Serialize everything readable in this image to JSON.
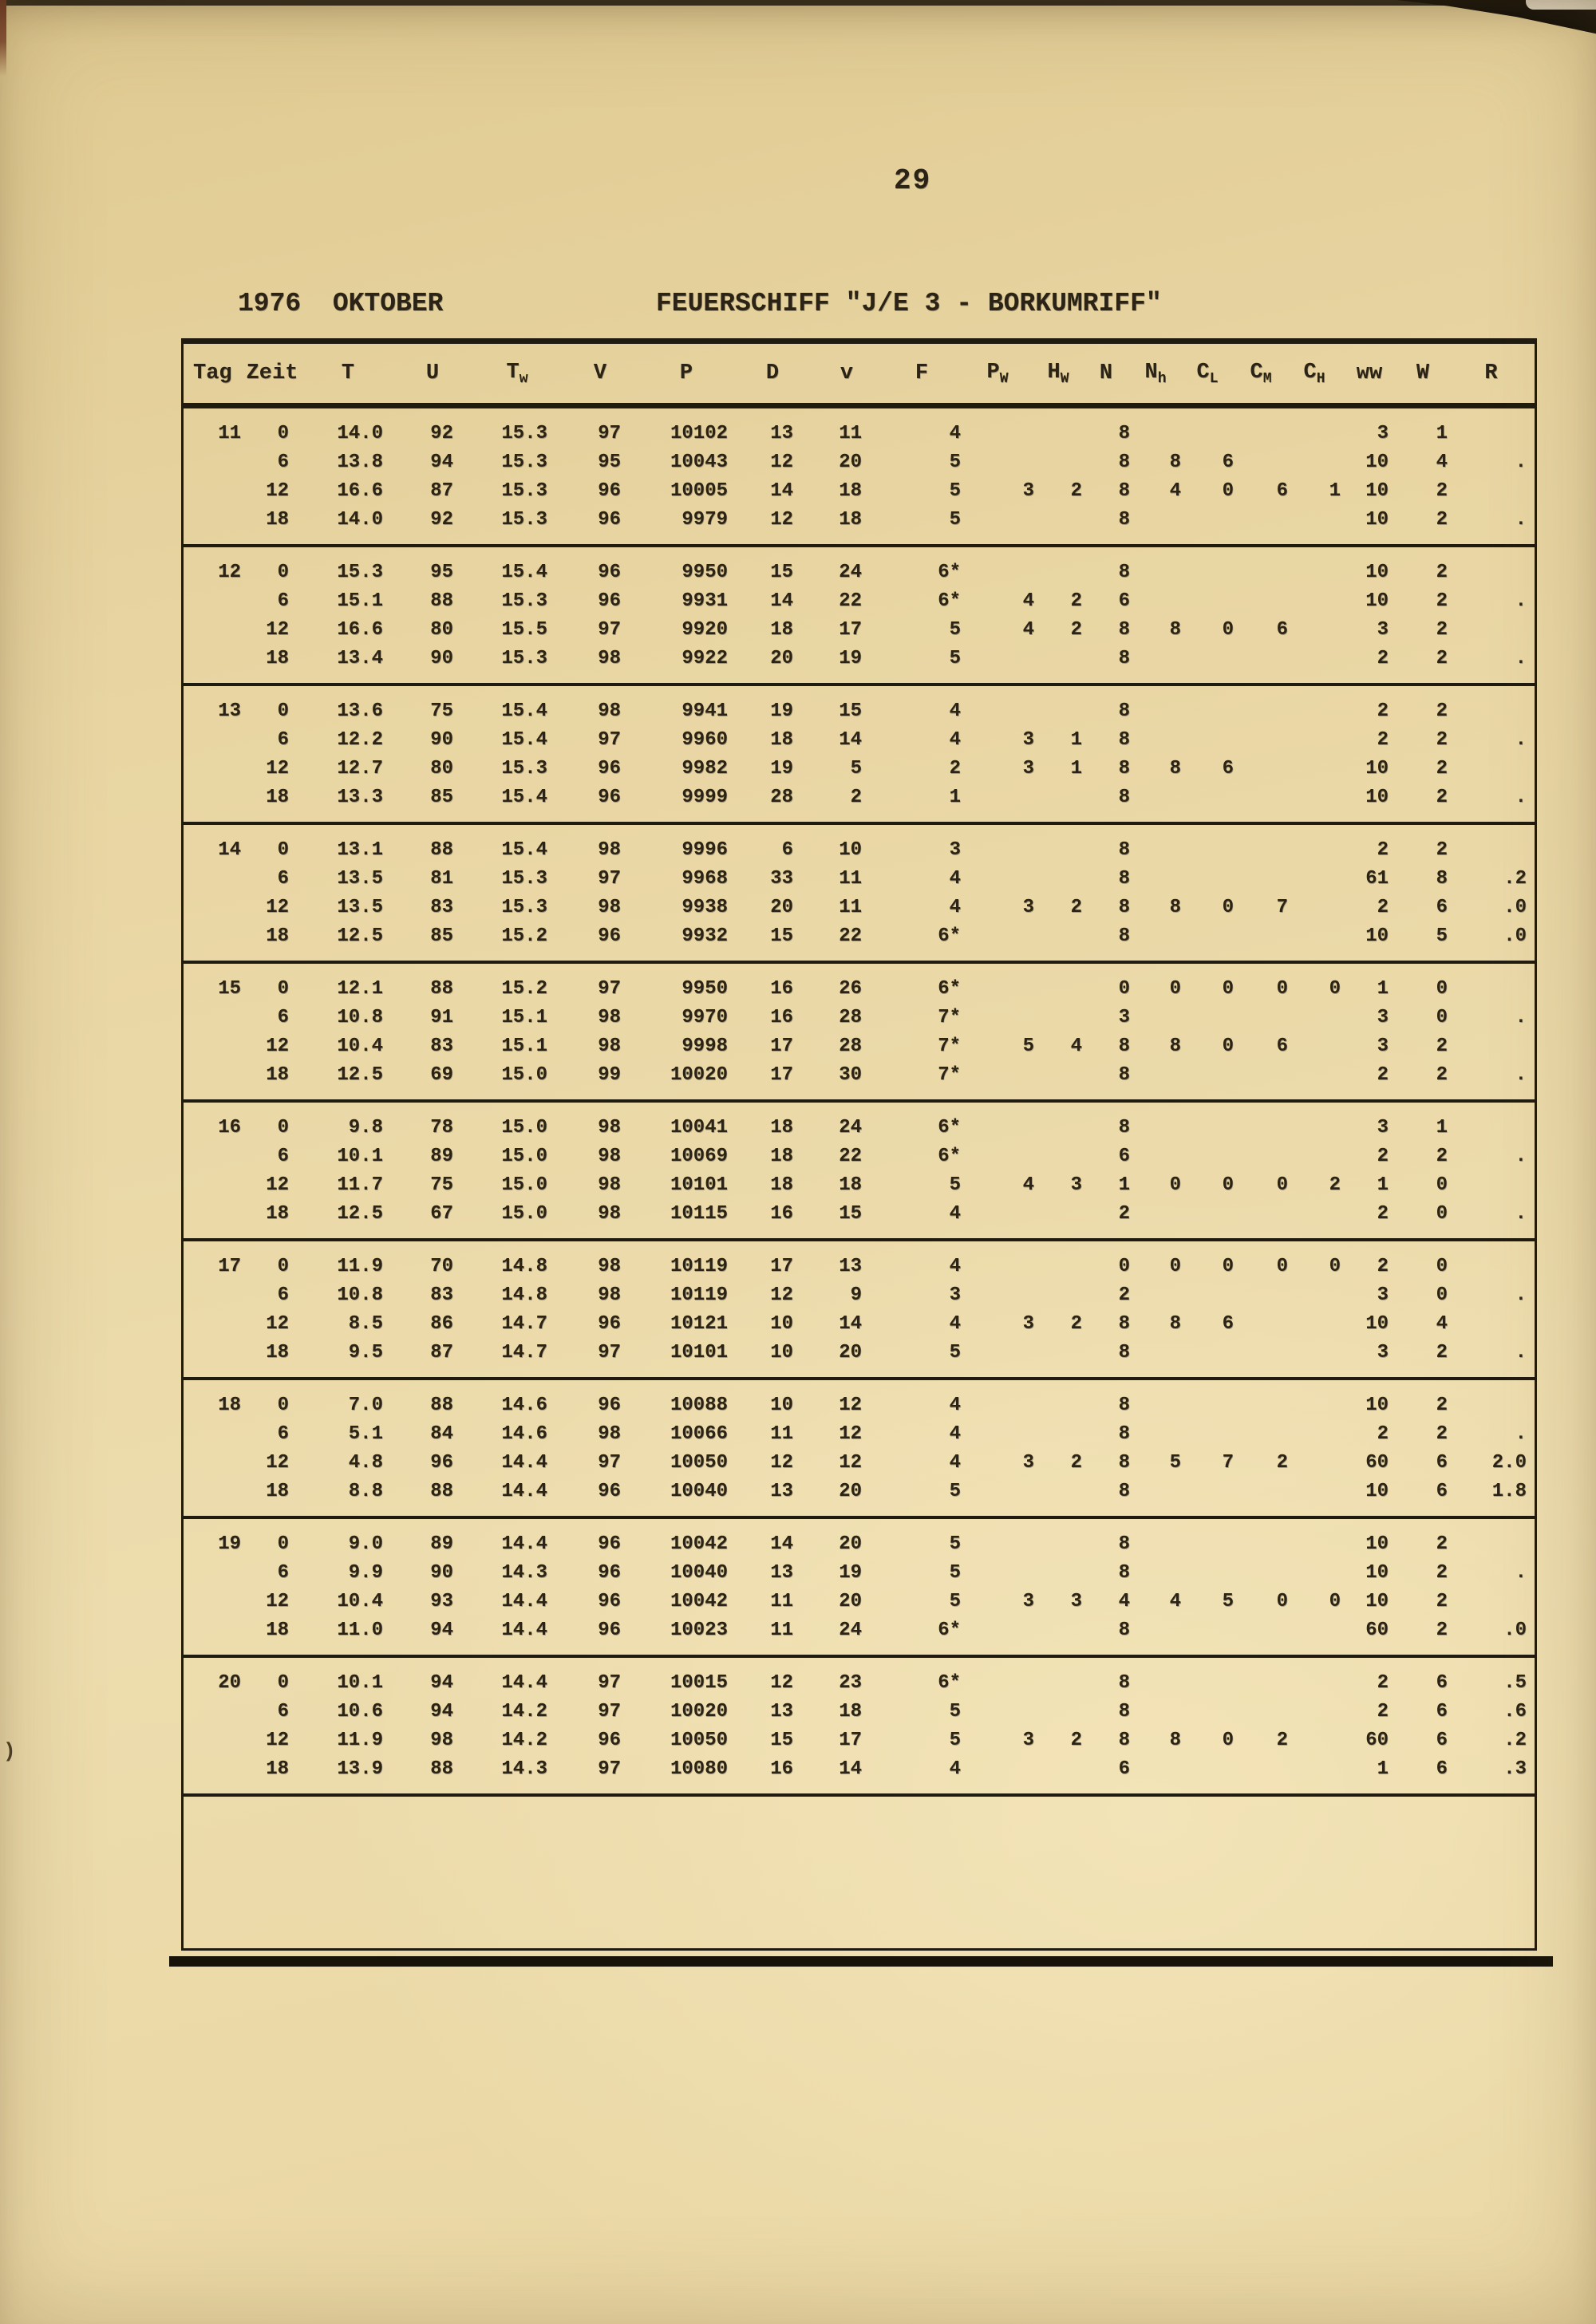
{
  "page": {
    "number": "29",
    "title_left": "1976  OKTOBER",
    "title_right": "FEUERSCHIFF \"J/E 3 - BORKUMRIFF\"",
    "scan_artifact": ")"
  },
  "colors": {
    "paper": "#e9d6a2",
    "ink": "#2b2416",
    "rule": "#201b10"
  },
  "table": {
    "columns": [
      {
        "key": "tag",
        "label": "Tag"
      },
      {
        "key": "zeit",
        "label": "Zeit"
      },
      {
        "key": "t",
        "label": "T"
      },
      {
        "key": "u",
        "label": "U"
      },
      {
        "key": "tw",
        "label": "T",
        "sub": "w"
      },
      {
        "key": "v-vis",
        "label": "V"
      },
      {
        "key": "p",
        "label": "P"
      },
      {
        "key": "d",
        "label": "D"
      },
      {
        "key": "v-wind",
        "label": "v"
      },
      {
        "key": "f",
        "label": "F"
      },
      {
        "key": "pw",
        "label": "P",
        "sub": "W"
      },
      {
        "key": "hw",
        "label": "H",
        "sub": "W"
      },
      {
        "key": "n",
        "label": "N"
      },
      {
        "key": "nh",
        "label": "N",
        "sub": "h"
      },
      {
        "key": "cl",
        "label": "C",
        "sub": "L"
      },
      {
        "key": "cm",
        "label": "C",
        "sub": "M"
      },
      {
        "key": "ch",
        "label": "C",
        "sub": "H"
      },
      {
        "key": "ww",
        "label": "ww"
      },
      {
        "key": "w",
        "label": "W"
      },
      {
        "key": "r",
        "label": "R"
      }
    ],
    "days": [
      {
        "tag": "11",
        "rows": [
          [
            "0",
            "14.0",
            "92",
            "15.3",
            "97",
            "10102",
            "13",
            "11",
            "4",
            "",
            "",
            "8",
            "",
            "",
            "",
            "",
            "3",
            "1",
            ""
          ],
          [
            "6",
            "13.8",
            "94",
            "15.3",
            "95",
            "10043",
            "12",
            "20",
            "5",
            "",
            "",
            "8",
            "8",
            "6",
            "",
            "",
            "10",
            "4",
            "."
          ],
          [
            "12",
            "16.6",
            "87",
            "15.3",
            "96",
            "10005",
            "14",
            "18",
            "5",
            "3",
            "2",
            "8",
            "4",
            "0",
            "6",
            "1",
            "10",
            "2",
            ""
          ],
          [
            "18",
            "14.0",
            "92",
            "15.3",
            "96",
            "9979",
            "12",
            "18",
            "5",
            "",
            "",
            "8",
            "",
            "",
            "",
            "",
            "10",
            "2",
            "."
          ]
        ]
      },
      {
        "tag": "12",
        "rows": [
          [
            "0",
            "15.3",
            "95",
            "15.4",
            "96",
            "9950",
            "15",
            "24",
            "6*",
            "",
            "",
            "8",
            "",
            "",
            "",
            "",
            "10",
            "2",
            ""
          ],
          [
            "6",
            "15.1",
            "88",
            "15.3",
            "96",
            "9931",
            "14",
            "22",
            "6*",
            "4",
            "2",
            "6",
            "",
            "",
            "",
            "",
            "10",
            "2",
            "."
          ],
          [
            "12",
            "16.6",
            "80",
            "15.5",
            "97",
            "9920",
            "18",
            "17",
            "5",
            "4",
            "2",
            "8",
            "8",
            "0",
            "6",
            "",
            "3",
            "2",
            ""
          ],
          [
            "18",
            "13.4",
            "90",
            "15.3",
            "98",
            "9922",
            "20",
            "19",
            "5",
            "",
            "",
            "8",
            "",
            "",
            "",
            "",
            "2",
            "2",
            "."
          ]
        ]
      },
      {
        "tag": "13",
        "rows": [
          [
            "0",
            "13.6",
            "75",
            "15.4",
            "98",
            "9941",
            "19",
            "15",
            "4",
            "",
            "",
            "8",
            "",
            "",
            "",
            "",
            "2",
            "2",
            ""
          ],
          [
            "6",
            "12.2",
            "90",
            "15.4",
            "97",
            "9960",
            "18",
            "14",
            "4",
            "3",
            "1",
            "8",
            "",
            "",
            "",
            "",
            "2",
            "2",
            "."
          ],
          [
            "12",
            "12.7",
            "80",
            "15.3",
            "96",
            "9982",
            "19",
            "5",
            "2",
            "3",
            "1",
            "8",
            "8",
            "6",
            "",
            "",
            "10",
            "2",
            ""
          ],
          [
            "18",
            "13.3",
            "85",
            "15.4",
            "96",
            "9999",
            "28",
            "2",
            "1",
            "",
            "",
            "8",
            "",
            "",
            "",
            "",
            "10",
            "2",
            "."
          ]
        ]
      },
      {
        "tag": "14",
        "rows": [
          [
            "0",
            "13.1",
            "88",
            "15.4",
            "98",
            "9996",
            "6",
            "10",
            "3",
            "",
            "",
            "8",
            "",
            "",
            "",
            "",
            "2",
            "2",
            ""
          ],
          [
            "6",
            "13.5",
            "81",
            "15.3",
            "97",
            "9968",
            "33",
            "11",
            "4",
            "",
            "",
            "8",
            "",
            "",
            "",
            "",
            "61",
            "8",
            ".2"
          ],
          [
            "12",
            "13.5",
            "83",
            "15.3",
            "98",
            "9938",
            "20",
            "11",
            "4",
            "3",
            "2",
            "8",
            "8",
            "0",
            "7",
            "",
            "2",
            "6",
            ".0"
          ],
          [
            "18",
            "12.5",
            "85",
            "15.2",
            "96",
            "9932",
            "15",
            "22",
            "6*",
            "",
            "",
            "8",
            "",
            "",
            "",
            "",
            "10",
            "5",
            ".0"
          ]
        ]
      },
      {
        "tag": "15",
        "rows": [
          [
            "0",
            "12.1",
            "88",
            "15.2",
            "97",
            "9950",
            "16",
            "26",
            "6*",
            "",
            "",
            "0",
            "0",
            "0",
            "0",
            "0",
            "1",
            "0",
            ""
          ],
          [
            "6",
            "10.8",
            "91",
            "15.1",
            "98",
            "9970",
            "16",
            "28",
            "7*",
            "",
            "",
            "3",
            "",
            "",
            "",
            "",
            "3",
            "0",
            "."
          ],
          [
            "12",
            "10.4",
            "83",
            "15.1",
            "98",
            "9998",
            "17",
            "28",
            "7*",
            "5",
            "4",
            "8",
            "8",
            "0",
            "6",
            "",
            "3",
            "2",
            ""
          ],
          [
            "18",
            "12.5",
            "69",
            "15.0",
            "99",
            "10020",
            "17",
            "30",
            "7*",
            "",
            "",
            "8",
            "",
            "",
            "",
            "",
            "2",
            "2",
            "."
          ]
        ]
      },
      {
        "tag": "16",
        "rows": [
          [
            "0",
            "9.8",
            "78",
            "15.0",
            "98",
            "10041",
            "18",
            "24",
            "6*",
            "",
            "",
            "8",
            "",
            "",
            "",
            "",
            "3",
            "1",
            ""
          ],
          [
            "6",
            "10.1",
            "89",
            "15.0",
            "98",
            "10069",
            "18",
            "22",
            "6*",
            "",
            "",
            "6",
            "",
            "",
            "",
            "",
            "2",
            "2",
            "."
          ],
          [
            "12",
            "11.7",
            "75",
            "15.0",
            "98",
            "10101",
            "18",
            "18",
            "5",
            "4",
            "3",
            "1",
            "0",
            "0",
            "0",
            "2",
            "1",
            "0",
            ""
          ],
          [
            "18",
            "12.5",
            "67",
            "15.0",
            "98",
            "10115",
            "16",
            "15",
            "4",
            "",
            "",
            "2",
            "",
            "",
            "",
            "",
            "2",
            "0",
            "."
          ]
        ]
      },
      {
        "tag": "17",
        "rows": [
          [
            "0",
            "11.9",
            "70",
            "14.8",
            "98",
            "10119",
            "17",
            "13",
            "4",
            "",
            "",
            "0",
            "0",
            "0",
            "0",
            "0",
            "2",
            "0",
            ""
          ],
          [
            "6",
            "10.8",
            "83",
            "14.8",
            "98",
            "10119",
            "12",
            "9",
            "3",
            "",
            "",
            "2",
            "",
            "",
            "",
            "",
            "3",
            "0",
            "."
          ],
          [
            "12",
            "8.5",
            "86",
            "14.7",
            "96",
            "10121",
            "10",
            "14",
            "4",
            "3",
            "2",
            "8",
            "8",
            "6",
            "",
            "",
            "10",
            "4",
            ""
          ],
          [
            "18",
            "9.5",
            "87",
            "14.7",
            "97",
            "10101",
            "10",
            "20",
            "5",
            "",
            "",
            "8",
            "",
            "",
            "",
            "",
            "3",
            "2",
            "."
          ]
        ]
      },
      {
        "tag": "18",
        "rows": [
          [
            "0",
            "7.0",
            "88",
            "14.6",
            "96",
            "10088",
            "10",
            "12",
            "4",
            "",
            "",
            "8",
            "",
            "",
            "",
            "",
            "10",
            "2",
            ""
          ],
          [
            "6",
            "5.1",
            "84",
            "14.6",
            "98",
            "10066",
            "11",
            "12",
            "4",
            "",
            "",
            "8",
            "",
            "",
            "",
            "",
            "2",
            "2",
            "."
          ],
          [
            "12",
            "4.8",
            "96",
            "14.4",
            "97",
            "10050",
            "12",
            "12",
            "4",
            "3",
            "2",
            "8",
            "5",
            "7",
            "2",
            "",
            "60",
            "6",
            "2.0"
          ],
          [
            "18",
            "8.8",
            "88",
            "14.4",
            "96",
            "10040",
            "13",
            "20",
            "5",
            "",
            "",
            "8",
            "",
            "",
            "",
            "",
            "10",
            "6",
            "1.8"
          ]
        ]
      },
      {
        "tag": "19",
        "rows": [
          [
            "0",
            "9.0",
            "89",
            "14.4",
            "96",
            "10042",
            "14",
            "20",
            "5",
            "",
            "",
            "8",
            "",
            "",
            "",
            "",
            "10",
            "2",
            ""
          ],
          [
            "6",
            "9.9",
            "90",
            "14.3",
            "96",
            "10040",
            "13",
            "19",
            "5",
            "",
            "",
            "8",
            "",
            "",
            "",
            "",
            "10",
            "2",
            "."
          ],
          [
            "12",
            "10.4",
            "93",
            "14.4",
            "96",
            "10042",
            "11",
            "20",
            "5",
            "3",
            "3",
            "4",
            "4",
            "5",
            "0",
            "0",
            "10",
            "2",
            ""
          ],
          [
            "18",
            "11.0",
            "94",
            "14.4",
            "96",
            "10023",
            "11",
            "24",
            "6*",
            "",
            "",
            "8",
            "",
            "",
            "",
            "",
            "60",
            "2",
            ".0"
          ]
        ]
      },
      {
        "tag": "20",
        "rows": [
          [
            "0",
            "10.1",
            "94",
            "14.4",
            "97",
            "10015",
            "12",
            "23",
            "6*",
            "",
            "",
            "8",
            "",
            "",
            "",
            "",
            "2",
            "6",
            ".5"
          ],
          [
            "6",
            "10.6",
            "94",
            "14.2",
            "97",
            "10020",
            "13",
            "18",
            "5",
            "",
            "",
            "8",
            "",
            "",
            "",
            "",
            "2",
            "6",
            ".6"
          ],
          [
            "12",
            "11.9",
            "98",
            "14.2",
            "96",
            "10050",
            "15",
            "17",
            "5",
            "3",
            "2",
            "8",
            "8",
            "0",
            "2",
            "",
            "60",
            "6",
            ".2"
          ],
          [
            "18",
            "13.9",
            "88",
            "14.3",
            "97",
            "10080",
            "16",
            "14",
            "4",
            "",
            "",
            "6",
            "",
            "",
            "",
            "",
            "1",
            "6",
            ".3"
          ]
        ]
      }
    ]
  }
}
